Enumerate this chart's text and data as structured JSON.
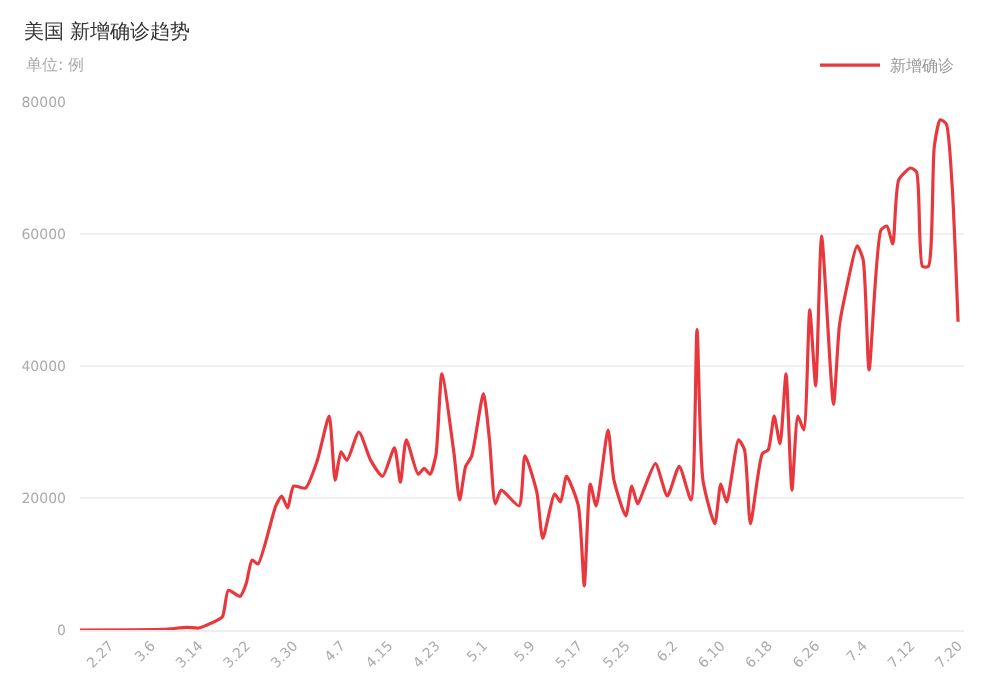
{
  "chart_data": {
    "type": "line",
    "title": "美国 新增确诊趋势",
    "subtitle": "单位: 例",
    "x": [
      "--02-22",
      "--03-08",
      "--03-12",
      "--03-14",
      "--03-16",
      "--03-18",
      "--03-19",
      "--03-21",
      "--03-22",
      "--03-23",
      "--03-24",
      "--03-27",
      "--03-28",
      "--03-29",
      "--03-30",
      "--04-01",
      "--04-03",
      "--04-05",
      "--04-06",
      "--04-07",
      "--04-08",
      "--04-10",
      "--04-12",
      "--04-14",
      "--04-16",
      "--04-17",
      "--04-18",
      "--04-20",
      "--04-21",
      "--04-22",
      "--04-23",
      "--04-24",
      "--04-26",
      "--04-27",
      "--04-28",
      "--04-29",
      "--05-01",
      "--05-02",
      "--05-03",
      "--05-04",
      "--05-07",
      "--05-08",
      "--05-10",
      "--05-11",
      "--05-13",
      "--05-14",
      "--05-15",
      "--05-17",
      "--05-18",
      "--05-19",
      "--05-20",
      "--05-22",
      "--05-23",
      "--05-25",
      "--05-26",
      "--05-27",
      "--05-28",
      "--05-30",
      "--06-01",
      "--06-03",
      "--06-05",
      "--06-06",
      "--06-07",
      "--06-09",
      "--06-10",
      "--06-11",
      "--06-13",
      "--06-14",
      "--06-15",
      "--06-17",
      "--06-18",
      "--06-19",
      "--06-20",
      "--06-21",
      "--06-22",
      "--06-23",
      "--06-24",
      "--06-25",
      "--06-26",
      "--06-27",
      "--06-29",
      "--06-30",
      "--07-01",
      "--07-03",
      "--07-04",
      "--07-05",
      "--07-07",
      "--07-08",
      "--07-09",
      "--07-10",
      "--07-12",
      "--07-13",
      "--07-14",
      "--07-15",
      "--07-16",
      "--07-17",
      "--07-18",
      "--07-19",
      "--07-20"
    ],
    "series": [
      {
        "name": "新增确诊",
        "color": "#e8383d",
        "values": [
          0,
          100,
          400,
          300,
          1000,
          2000,
          6000,
          5100,
          7000,
          10600,
          10000,
          18800,
          20300,
          18500,
          21800,
          21500,
          25700,
          32400,
          22700,
          27000,
          25700,
          30000,
          25700,
          23300,
          27600,
          22400,
          28800,
          23600,
          24500,
          23600,
          26600,
          38800,
          27000,
          19700,
          24800,
          26300,
          35800,
          29000,
          19100,
          21200,
          18800,
          26400,
          20900,
          13900,
          20600,
          19400,
          23300,
          18800,
          6700,
          22100,
          18800,
          30300,
          22700,
          17300,
          21800,
          19100,
          21200,
          25200,
          20300,
          24800,
          19700,
          45500,
          22700,
          16100,
          22100,
          19400,
          28800,
          27300,
          16100,
          26700,
          27300,
          32400,
          28200,
          38800,
          21200,
          32400,
          30300,
          48500,
          37000,
          59700,
          34200,
          46100,
          50900,
          58200,
          56100,
          39400,
          60600,
          61200,
          58500,
          68200,
          70000,
          69400,
          55100,
          55100,
          73300,
          77300,
          76700,
          67300,
          46700
        ]
      }
    ],
    "xlim": [
      "--02-22",
      "--07-21"
    ],
    "xticks": [
      {
        "value": "--02-27",
        "label": "2.27"
      },
      {
        "value": "--03-06",
        "label": "3.6"
      },
      {
        "value": "--03-14",
        "label": "3.14"
      },
      {
        "value": "--03-22",
        "label": "3.22"
      },
      {
        "value": "--03-30",
        "label": "3.30"
      },
      {
        "value": "--04-07",
        "label": "4.7"
      },
      {
        "value": "--04-15",
        "label": "4.15"
      },
      {
        "value": "--04-23",
        "label": "4.23"
      },
      {
        "value": "--05-01",
        "label": "5.1"
      },
      {
        "value": "--05-09",
        "label": "5.9"
      },
      {
        "value": "--05-17",
        "label": "5.17"
      },
      {
        "value": "--05-25",
        "label": "5.25"
      },
      {
        "value": "--06-02",
        "label": "6.2"
      },
      {
        "value": "--06-10",
        "label": "6.10"
      },
      {
        "value": "--06-18",
        "label": "6.18"
      },
      {
        "value": "--06-26",
        "label": "6.26"
      },
      {
        "value": "--07-04",
        "label": "7.4"
      },
      {
        "value": "--07-12",
        "label": "7.12"
      },
      {
        "value": "--07-20",
        "label": "7.20"
      }
    ],
    "ylim": [
      0,
      80000
    ],
    "yticks": [
      0,
      20000,
      40000,
      60000,
      80000
    ],
    "grid": "y",
    "legend": "top right"
  }
}
